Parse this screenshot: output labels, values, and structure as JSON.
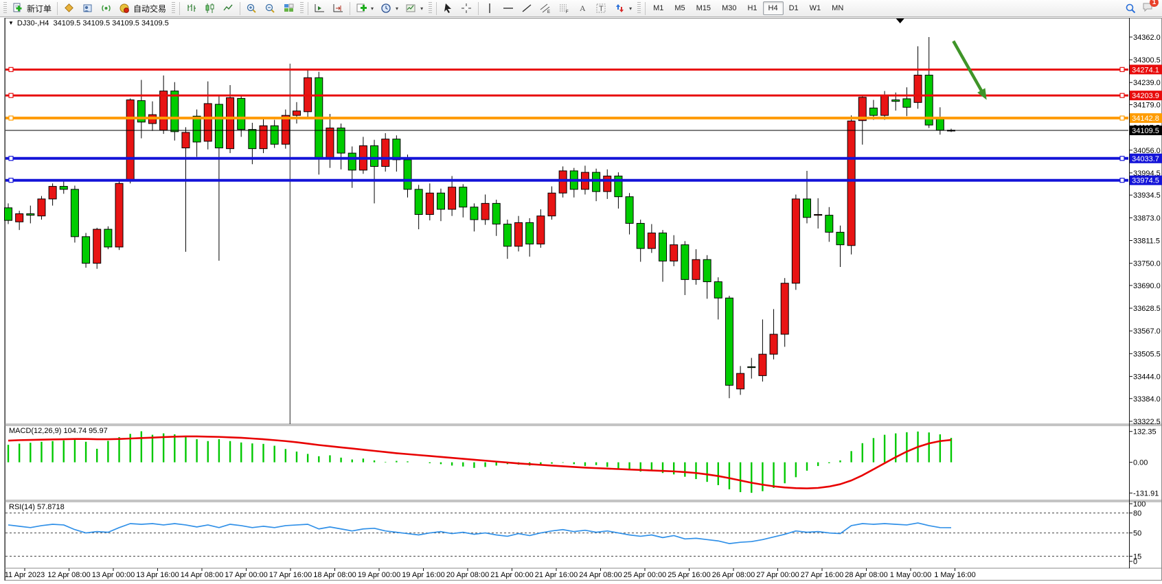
{
  "window": {
    "symbol": "DJ30-,H4",
    "quotes": "34109.5 34109.5 34109.5 34109.5"
  },
  "toolbar": {
    "new_order_label": "新订单",
    "autotrading_label": "自动交易",
    "timeframes": [
      "M1",
      "M5",
      "M15",
      "M30",
      "H1",
      "H4",
      "D1",
      "W1",
      "MN"
    ],
    "active_timeframe": "H4",
    "notification_count": "1",
    "icon_names": [
      "new-order-icon",
      "market-watch-icon",
      "data-window-icon",
      "signals-icon",
      "autotrading-icon",
      "bar-chart-icon",
      "candlestick-chart-icon",
      "line-chart-icon",
      "zoom-in-icon",
      "zoom-out-icon",
      "tile-windows-icon",
      "auto-scroll-icon",
      "chart-shift-icon",
      "indicators-icon",
      "periods-icon",
      "templates-icon",
      "cursor-icon",
      "crosshair-icon",
      "vertical-line-icon",
      "horizontal-line-icon",
      "trendline-icon",
      "equidistant-channel-icon",
      "fibonacci-icon",
      "text-icon",
      "text-label-icon",
      "arrows-icon",
      "search-icon",
      "chat-icon"
    ]
  },
  "indicators": {
    "macd_text": "MACD(12,26,9) 104.74 95.97",
    "rsi_text": "RSI(14) 57.8718"
  },
  "chart_data": {
    "type": "candlestick",
    "symbol": "DJ30-",
    "timeframe": "H4",
    "up_color": "#e81414",
    "down_color": "#00cc00",
    "grid": false,
    "y_axis_range": [
      33314.9,
      34406.5
    ],
    "y_ticks": [
      "34362.0",
      "34300.5",
      "34239.0",
      "34179.0",
      "34117.5",
      "34056.0",
      "33994.5",
      "33934.5",
      "33873.0",
      "33811.5",
      "33750.0",
      "33690.0",
      "33628.5",
      "33567.0",
      "33505.5",
      "33444.0",
      "33384.0",
      "33322.5"
    ],
    "x_labels": [
      "11 Apr 2023",
      "12 Apr 08:00",
      "13 Apr 00:00",
      "13 Apr 16:00",
      "14 Apr 08:00",
      "17 Apr 00:00",
      "17 Apr 16:00",
      "18 Apr 08:00",
      "19 Apr 00:00",
      "19 Apr 16:00",
      "20 Apr 08:00",
      "21 Apr 00:00",
      "21 Apr 16:00",
      "24 Apr 08:00",
      "25 Apr 00:00",
      "25 Apr 16:00",
      "26 Apr 08:00",
      "27 Apr 00:00",
      "27 Apr 16:00",
      "28 Apr 08:00",
      "1 May 00:00",
      "1 May 16:00"
    ],
    "candles": [
      [
        33900,
        33912,
        33856,
        33866
      ],
      [
        33862,
        33892,
        33840,
        33884
      ],
      [
        33884,
        33906,
        33858,
        33880
      ],
      [
        33878,
        33932,
        33868,
        33924
      ],
      [
        33924,
        33966,
        33906,
        33958
      ],
      [
        33958,
        33976,
        33938,
        33950
      ],
      [
        33950,
        33960,
        33806,
        33822
      ],
      [
        33822,
        33832,
        33738,
        33750
      ],
      [
        33750,
        33846,
        33735,
        33842
      ],
      [
        33842,
        33850,
        33788,
        33794
      ],
      [
        33794,
        33972,
        33786,
        33966
      ],
      [
        33972,
        34196,
        33966,
        34192
      ],
      [
        34190,
        34246,
        34088,
        34132
      ],
      [
        34128,
        34188,
        34108,
        34152
      ],
      [
        34110,
        34258,
        34100,
        34216
      ],
      [
        34216,
        34240,
        34082,
        34106
      ],
      [
        34062,
        34118,
        33781,
        34104
      ],
      [
        34148,
        34166,
        34038,
        34078
      ],
      [
        34080,
        34242,
        34058,
        34182
      ],
      [
        34180,
        34202,
        33757,
        34062
      ],
      [
        34060,
        34232,
        34048,
        34198
      ],
      [
        34196,
        34206,
        34092,
        34112
      ],
      [
        34112,
        34130,
        34018,
        34060
      ],
      [
        34060,
        34142,
        34048,
        34122
      ],
      [
        34122,
        34138,
        34062,
        34072
      ],
      [
        34072,
        34166,
        34060,
        34150
      ],
      [
        34150,
        34186,
        34128,
        34162
      ],
      [
        34160,
        34272,
        34146,
        34252
      ],
      [
        34252,
        34268,
        33990,
        34032
      ],
      [
        34034,
        34154,
        34008,
        34116
      ],
      [
        34116,
        34128,
        34004,
        34048
      ],
      [
        34048,
        34066,
        33954,
        34002
      ],
      [
        34002,
        34092,
        33992,
        34068
      ],
      [
        34068,
        34084,
        33912,
        34012
      ],
      [
        34012,
        34102,
        33998,
        34086
      ],
      [
        34086,
        34096,
        33998,
        34030
      ],
      [
        34030,
        34044,
        33928,
        33950
      ],
      [
        33950,
        33962,
        33842,
        33882
      ],
      [
        33882,
        33966,
        33866,
        33940
      ],
      [
        33940,
        33952,
        33864,
        33896
      ],
      [
        33896,
        33986,
        33878,
        33956
      ],
      [
        33956,
        33964,
        33874,
        33902
      ],
      [
        33902,
        33912,
        33836,
        33868
      ],
      [
        33868,
        33936,
        33854,
        33912
      ],
      [
        33912,
        33922,
        33824,
        33856
      ],
      [
        33856,
        33868,
        33762,
        33796
      ],
      [
        33796,
        33878,
        33782,
        33860
      ],
      [
        33860,
        33872,
        33768,
        33802
      ],
      [
        33802,
        33896,
        33792,
        33878
      ],
      [
        33878,
        33958,
        33868,
        33940
      ],
      [
        33940,
        34012,
        33928,
        34000
      ],
      [
        34000,
        34008,
        33928,
        33950
      ],
      [
        33950,
        34014,
        33936,
        33996
      ],
      [
        33996,
        34006,
        33918,
        33944
      ],
      [
        33944,
        34004,
        33924,
        33986
      ],
      [
        33986,
        33996,
        33898,
        33930
      ],
      [
        33930,
        33940,
        33828,
        33858
      ],
      [
        33858,
        33868,
        33754,
        33790
      ],
      [
        33790,
        33856,
        33778,
        33832
      ],
      [
        33832,
        33840,
        33700,
        33756
      ],
      [
        33756,
        33826,
        33742,
        33800
      ],
      [
        33800,
        33810,
        33664,
        33706
      ],
      [
        33706,
        33788,
        33692,
        33760
      ],
      [
        33760,
        33772,
        33654,
        33700
      ],
      [
        33700,
        33712,
        33598,
        33656
      ],
      [
        33656,
        33662,
        33385,
        33420
      ],
      [
        33410,
        33472,
        33394,
        33452
      ],
      [
        33470,
        33494,
        33438,
        33468
      ],
      [
        33446,
        33598,
        33430,
        33504
      ],
      [
        33504,
        33626,
        33490,
        33558
      ],
      [
        33558,
        33710,
        33524,
        33696
      ],
      [
        33696,
        33936,
        33678,
        33924
      ],
      [
        33924,
        34000,
        33858,
        33874
      ],
      [
        33880,
        33926,
        33844,
        33882
      ],
      [
        33880,
        33902,
        33808,
        33834
      ],
      [
        33834,
        33852,
        33740,
        33800
      ],
      [
        33798,
        34150,
        33774,
        34135
      ],
      [
        34136,
        34206,
        34071,
        34199
      ],
      [
        34170,
        34192,
        34138,
        34150
      ],
      [
        34150,
        34216,
        34138,
        34205
      ],
      [
        34192,
        34212,
        34163,
        34188
      ],
      [
        34195,
        34226,
        34148,
        34172
      ],
      [
        34185,
        34337,
        34168,
        34259
      ],
      [
        34259,
        34362,
        34116,
        34124
      ],
      [
        34140,
        34172,
        34098,
        34110
      ],
      [
        34110,
        34114,
        34105,
        34109.5
      ]
    ],
    "hlines": [
      {
        "value": 34274.1,
        "label": "34274.1",
        "color": "#e80c0c",
        "width": 3,
        "markers": true
      },
      {
        "value": 34203.9,
        "label": "34203.9",
        "color": "#e80c0c",
        "width": 3,
        "markers": true
      },
      {
        "value": 34142.8,
        "label": "34142.8",
        "color": "#ff9c00",
        "width": 4,
        "markers": true
      },
      {
        "value": 34109.5,
        "label": "34109.5",
        "color": "#000000",
        "width": 1,
        "markers": false,
        "current_price": true
      },
      {
        "value": 34033.7,
        "label": "34033.7",
        "color": "#1414d8",
        "width": 4,
        "markers": true
      },
      {
        "value": 33974.5,
        "label": "33974.5",
        "color": "#1414d8",
        "width": 4,
        "markers": true
      }
    ],
    "vline": {
      "at_bar": 25.4,
      "from_price": 34290,
      "color": "#222222"
    },
    "arrow": {
      "from_bar": 85.2,
      "from_price": 34351,
      "to_bar": 88.2,
      "to_price": 34192,
      "color": "#3f9428"
    },
    "shift_marker_bar": 80.4,
    "macd": {
      "params": "12,26,9",
      "axis": [
        "132.35",
        "0.00",
        "-131.91"
      ],
      "axis_values": [
        132.35,
        0,
        -131.91
      ],
      "histogram_color": "#00c800",
      "signal_color": "#e80000",
      "values": [
        75,
        80,
        84,
        88,
        91,
        94,
        96,
        88,
        58,
        92,
        108,
        122,
        133,
        118,
        124,
        120,
        111,
        99,
        91,
        99,
        91,
        85,
        81,
        79,
        71,
        57,
        46,
        36,
        26,
        30,
        20,
        12,
        16,
        8,
        2,
        6,
        4,
        0,
        -4,
        -8,
        -14,
        -18,
        -24,
        -20,
        -14,
        -8,
        -10,
        -14,
        -10,
        -6,
        -2,
        -8,
        -16,
        -12,
        -20,
        -26,
        -32,
        -40,
        -36,
        -46,
        -52,
        -62,
        -72,
        -84,
        -98,
        -116,
        -128,
        -131,
        -124,
        -110,
        -90,
        -64,
        -36,
        -16,
        -4,
        8,
        48,
        82,
        104,
        118,
        124,
        129,
        132,
        128,
        120,
        104.74
      ],
      "signal": [
        93,
        95,
        96,
        97,
        98,
        99,
        100,
        100,
        99,
        99,
        100,
        102,
        104,
        106,
        108,
        110,
        111,
        111,
        110,
        109,
        107,
        105,
        102,
        99,
        95,
        91,
        86,
        80,
        74,
        69,
        64,
        59,
        54,
        49,
        44,
        39,
        35,
        31,
        27,
        23,
        19,
        15,
        11,
        7,
        3,
        -1,
        -5,
        -8,
        -11,
        -14,
        -17,
        -20,
        -23,
        -25,
        -27,
        -29,
        -31,
        -33,
        -35,
        -37,
        -39,
        -42,
        -46,
        -52,
        -59,
        -68,
        -78,
        -88,
        -96,
        -103,
        -108,
        -111,
        -112,
        -110,
        -104,
        -94,
        -78,
        -56,
        -30,
        -4,
        22,
        46,
        66,
        81,
        91,
        95.97
      ]
    },
    "rsi": {
      "period": "14",
      "axis": [
        "100",
        "80",
        "50",
        "15",
        "0"
      ],
      "levels": [
        80,
        50,
        15
      ],
      "line_color": "#3090e8",
      "values": [
        62,
        60,
        58,
        61,
        63,
        62,
        55,
        50,
        52,
        51,
        58,
        64,
        63,
        64,
        62,
        64,
        62,
        59,
        62,
        58,
        63,
        61,
        58,
        60,
        58,
        61,
        62,
        63,
        56,
        59,
        56,
        53,
        56,
        57,
        53,
        51,
        49,
        47,
        50,
        52,
        49,
        51,
        48,
        50,
        47,
        45,
        49,
        46,
        50,
        53,
        55,
        52,
        54,
        51,
        53,
        50,
        47,
        45,
        47,
        43,
        46,
        41,
        42,
        40,
        38,
        34,
        36,
        37,
        40,
        44,
        48,
        53,
        51,
        52,
        50,
        49,
        61,
        64,
        63,
        64,
        63,
        62,
        65,
        61,
        58,
        57.87
      ]
    }
  }
}
